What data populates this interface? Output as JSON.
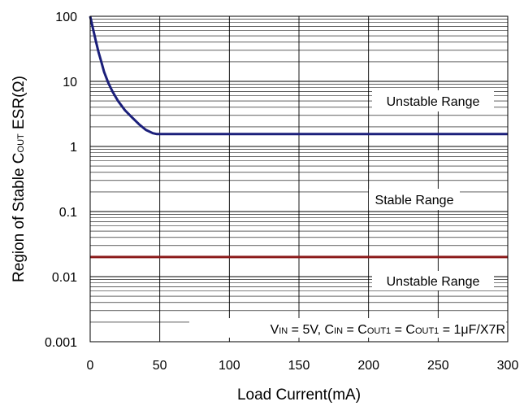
{
  "chart_data": {
    "type": "line",
    "title": "",
    "xlabel": "Load Current(mA)",
    "ylabel": {
      "pre": "Region of Stable C",
      "sub": "OUT",
      "post": " ESR(Ω)"
    },
    "x_ticks": [
      "0",
      "50",
      "100",
      "150",
      "200",
      "250",
      "300"
    ],
    "y_ticks": [
      "0.001",
      "0.01",
      "0.1",
      "1",
      "10",
      "100"
    ],
    "xlim": [
      0,
      300
    ],
    "ylim": [
      0.001,
      100
    ],
    "y_scale": "log",
    "grid": true,
    "series": [
      {
        "color": "#1b1f7a",
        "x": [
          0,
          2,
          4,
          6,
          8,
          10,
          13,
          16,
          20,
          25,
          30,
          35,
          40,
          45,
          48,
          50,
          100,
          150,
          200,
          250,
          300
        ],
        "y": [
          100,
          65,
          42,
          28,
          20,
          14,
          9.5,
          7.0,
          5.0,
          3.6,
          2.8,
          2.2,
          1.8,
          1.6,
          1.55,
          1.55,
          1.55,
          1.55,
          1.55,
          1.55,
          1.55
        ]
      },
      {
        "color": "#8b1a1a",
        "x": [
          0,
          300
        ],
        "y": [
          0.02,
          0.02
        ]
      }
    ],
    "annotations": {
      "upper": "Unstable Range",
      "middle": "Stable Range",
      "lower": "Unstable Range",
      "conditions": [
        {
          "t": "V",
          "s": false
        },
        {
          "t": "IN",
          "s": true
        },
        {
          "t": " = 5V, C",
          "s": false
        },
        {
          "t": "IN",
          "s": true
        },
        {
          "t": " = C",
          "s": false
        },
        {
          "t": "OUT1",
          "s": true
        },
        {
          "t": " = C",
          "s": false
        },
        {
          "t": "OUT1",
          "s": true
        },
        {
          "t": " = 1μF/X7R",
          "s": false
        }
      ]
    }
  }
}
